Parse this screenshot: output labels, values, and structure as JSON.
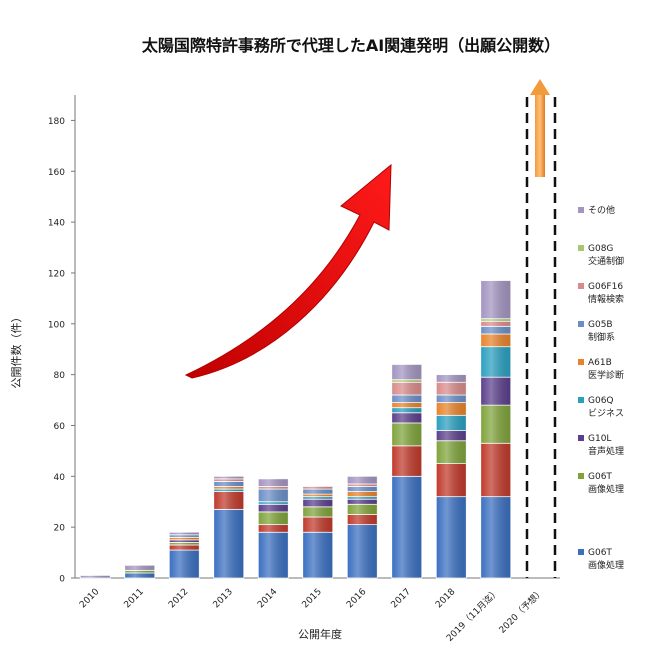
{
  "chart_data": {
    "type": "bar",
    "stacked": true,
    "title": "太陽国際特許事務所で代理したAI関連発明（出願公開数）",
    "xlabel": "公開年度",
    "ylabel": "公開件数（件）",
    "ylim": [
      0,
      190
    ],
    "yticks": [
      0,
      20,
      40,
      60,
      80,
      100,
      120,
      140,
      160,
      180
    ],
    "grid": false,
    "legend_position": "right",
    "categories": [
      "2010",
      "2011",
      "2012",
      "2013",
      "2014",
      "2015",
      "2016",
      "2017",
      "2018",
      "2019（11月迄）",
      "2020（予想）"
    ],
    "series": [
      {
        "name": "G06T\n画像処理",
        "color": "#3a6fc0",
        "values": [
          0,
          2,
          11,
          27,
          18,
          18,
          21,
          40,
          32,
          32,
          0
        ]
      },
      {
        "name": "",
        "color": "#c0392b",
        "values": [
          0,
          0,
          2,
          7,
          3,
          6,
          4,
          12,
          13,
          21,
          0
        ]
      },
      {
        "name": "G06T\n画像処理",
        "color": "#7fa33a",
        "values": [
          0,
          1,
          1,
          0,
          5,
          4,
          4,
          9,
          9,
          15,
          0
        ]
      },
      {
        "name": "G10L\n音声処理",
        "color": "#5b3f8c",
        "values": [
          0,
          0,
          1,
          0,
          3,
          3,
          2,
          4,
          4,
          11,
          0
        ]
      },
      {
        "name": "G06Q\nビジネス",
        "color": "#2a9fbf",
        "values": [
          0,
          0,
          0,
          1,
          1,
          1,
          1,
          2,
          6,
          12,
          0
        ]
      },
      {
        "name": "A61B\n医学診断",
        "color": "#e8832a",
        "values": [
          0,
          0,
          1,
          1,
          0,
          1,
          2,
          2,
          5,
          5,
          0
        ]
      },
      {
        "name": "G05B\n制御系",
        "color": "#6a8ec8",
        "values": [
          0,
          0,
          1,
          2,
          5,
          2,
          2,
          3,
          3,
          3,
          0
        ]
      },
      {
        "name": "G06F16\n情報検索",
        "color": "#d98b8b",
        "values": [
          0,
          0,
          0,
          1,
          1,
          1,
          1,
          5,
          5,
          2,
          0
        ]
      },
      {
        "name": "G08G\n交通制御",
        "color": "#a9c76e",
        "values": [
          0,
          0,
          0,
          0,
          0,
          0,
          0,
          1,
          0,
          1,
          0
        ]
      },
      {
        "name": "その他",
        "color": "#a394c0",
        "values": [
          1,
          2,
          1,
          1,
          3,
          0,
          3,
          6,
          3,
          15,
          0
        ]
      }
    ]
  }
}
